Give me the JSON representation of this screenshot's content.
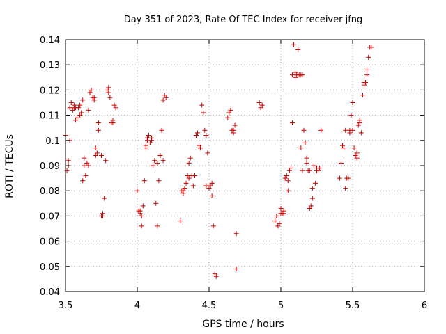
{
  "chart_data": {
    "type": "scatter",
    "title": "Day 351 of 2023, Rate Of TEC Index for receiver jfng",
    "xlabel": "GPS time / hours",
    "ylabel": "ROTI / TECUs",
    "xlim": [
      3.5,
      6
    ],
    "ylim": [
      0.04,
      0.14
    ],
    "grid": true,
    "x_ticks": [
      3.5,
      4,
      4.5,
      5,
      5.5,
      6
    ],
    "x_tick_labels": [
      "3.5",
      "4",
      "4.5",
      "5",
      "5.5",
      "6"
    ],
    "y_ticks": [
      0.04,
      0.05,
      0.06,
      0.07,
      0.08,
      0.09,
      0.1,
      0.11,
      0.12,
      0.13,
      0.14
    ],
    "y_tick_labels": [
      "0.04",
      "0.05",
      "0.06",
      "0.07",
      "0.08",
      "0.09",
      "0.1",
      "0.11",
      "0.12",
      "0.13",
      "0.14"
    ],
    "colors": {
      "marker": "#cc0000",
      "grid": "#a0a0a0",
      "axis": "#000000"
    },
    "series": [
      {
        "name": "ROTI",
        "marker": "plus",
        "x": [
          3.5,
          3.51,
          3.52,
          3.53,
          3.54,
          3.55,
          3.56,
          3.57,
          3.58,
          3.59,
          3.6,
          3.61,
          3.62,
          3.63,
          3.64,
          3.65,
          3.66,
          3.67,
          3.68,
          3.69,
          3.7,
          3.71,
          3.72,
          3.73,
          3.75,
          3.76,
          3.77,
          3.78,
          3.79,
          3.8,
          3.81,
          3.82,
          3.83,
          3.84,
          3.85,
          3.53,
          3.56,
          3.6,
          3.63,
          3.67,
          3.7,
          3.73,
          3.76,
          3.8,
          3.83,
          3.52,
          3.57,
          3.62,
          3.66,
          3.71,
          3.75,
          4.0,
          4.01,
          4.02,
          4.03,
          4.04,
          4.05,
          4.06,
          4.07,
          4.08,
          4.09,
          4.1,
          4.11,
          4.12,
          4.13,
          4.14,
          4.15,
          4.16,
          4.17,
          4.18,
          4.19,
          4.2,
          4.03,
          4.07,
          4.1,
          4.14,
          4.18,
          4.02,
          4.06,
          4.3,
          4.31,
          4.32,
          4.33,
          4.34,
          4.35,
          4.36,
          4.37,
          4.38,
          4.39,
          4.4,
          4.41,
          4.42,
          4.43,
          4.44,
          4.45,
          4.46,
          4.47,
          4.48,
          4.49,
          4.5,
          4.51,
          4.52,
          4.53,
          4.54,
          4.55,
          4.32,
          4.36,
          4.4,
          4.44,
          4.48,
          4.52,
          4.63,
          4.64,
          4.65,
          4.66,
          4.67,
          4.68,
          4.69,
          4.85,
          4.86,
          4.87,
          4.67,
          4.69,
          4.96,
          4.97,
          4.98,
          4.99,
          5.0,
          5.01,
          5.02,
          5.03,
          5.04,
          5.05,
          5.06,
          5.07,
          5.08,
          5.09,
          5.1,
          5.11,
          5.12,
          5.13,
          5.14,
          5.15,
          5.16,
          5.17,
          5.18,
          5.19,
          5.2,
          5.21,
          5.22,
          5.23,
          5.24,
          5.25,
          5.26,
          5.27,
          5.28,
          5.0,
          5.05,
          5.1,
          5.15,
          5.2,
          5.25,
          5.02,
          5.12,
          5.08,
          5.18,
          5.22,
          5.14,
          5.41,
          5.42,
          5.43,
          5.44,
          5.45,
          5.46,
          5.47,
          5.48,
          5.49,
          5.5,
          5.51,
          5.52,
          5.53,
          5.54,
          5.55,
          5.56,
          5.57,
          5.58,
          5.59,
          5.6,
          5.61,
          5.62,
          5.63,
          5.45,
          5.5,
          5.55,
          5.6,
          5.43,
          5.48,
          5.53,
          5.58
        ],
        "y": [
          0.102,
          0.088,
          0.092,
          0.1,
          0.115,
          0.112,
          0.114,
          0.113,
          0.109,
          0.113,
          0.114,
          0.111,
          0.084,
          0.093,
          0.086,
          0.091,
          0.112,
          0.119,
          0.12,
          0.117,
          0.117,
          0.097,
          0.095,
          0.104,
          0.094,
          0.071,
          0.077,
          0.092,
          0.12,
          0.121,
          0.117,
          0.107,
          0.107,
          0.114,
          0.113,
          0.113,
          0.113,
          0.11,
          0.09,
          0.119,
          0.116,
          0.107,
          0.07,
          0.119,
          0.108,
          0.09,
          0.108,
          0.116,
          0.09,
          0.094,
          0.07,
          0.08,
          0.072,
          0.071,
          0.066,
          0.074,
          0.084,
          0.098,
          0.1,
          0.102,
          0.099,
          0.101,
          0.09,
          0.092,
          0.075,
          0.066,
          0.084,
          0.094,
          0.104,
          0.116,
          0.118,
          0.117,
          0.07,
          0.101,
          0.1,
          0.091,
          0.092,
          0.072,
          0.097,
          0.068,
          0.08,
          0.08,
          0.081,
          0.083,
          0.086,
          0.091,
          0.093,
          0.086,
          0.082,
          0.086,
          0.102,
          0.103,
          0.098,
          0.097,
          0.114,
          0.111,
          0.104,
          0.102,
          0.095,
          0.081,
          0.082,
          0.078,
          0.066,
          0.047,
          0.046,
          0.079,
          0.085,
          0.086,
          0.097,
          0.082,
          0.083,
          0.109,
          0.111,
          0.112,
          0.104,
          0.103,
          0.106,
          0.063,
          0.115,
          0.113,
          0.114,
          0.104,
          0.049,
          0.068,
          0.07,
          0.066,
          0.067,
          0.073,
          0.071,
          0.072,
          0.085,
          0.086,
          0.084,
          0.088,
          0.089,
          0.107,
          0.138,
          0.127,
          0.126,
          0.136,
          0.126,
          0.126,
          0.126,
          0.104,
          0.099,
          0.091,
          0.088,
          0.073,
          0.074,
          0.081,
          0.09,
          0.083,
          0.088,
          0.088,
          0.089,
          0.104,
          0.071,
          0.08,
          0.125,
          0.088,
          0.088,
          0.089,
          0.071,
          0.126,
          0.126,
          0.093,
          0.077,
          0.097,
          0.085,
          0.091,
          0.098,
          0.097,
          0.081,
          0.085,
          0.085,
          0.104,
          0.11,
          0.115,
          0.097,
          0.094,
          0.093,
          0.106,
          0.108,
          0.103,
          0.118,
          0.122,
          0.123,
          0.126,
          0.133,
          0.137,
          0.137,
          0.104,
          0.104,
          0.107,
          0.128,
          0.098,
          0.103,
          0.095,
          0.123
        ]
      }
    ]
  }
}
